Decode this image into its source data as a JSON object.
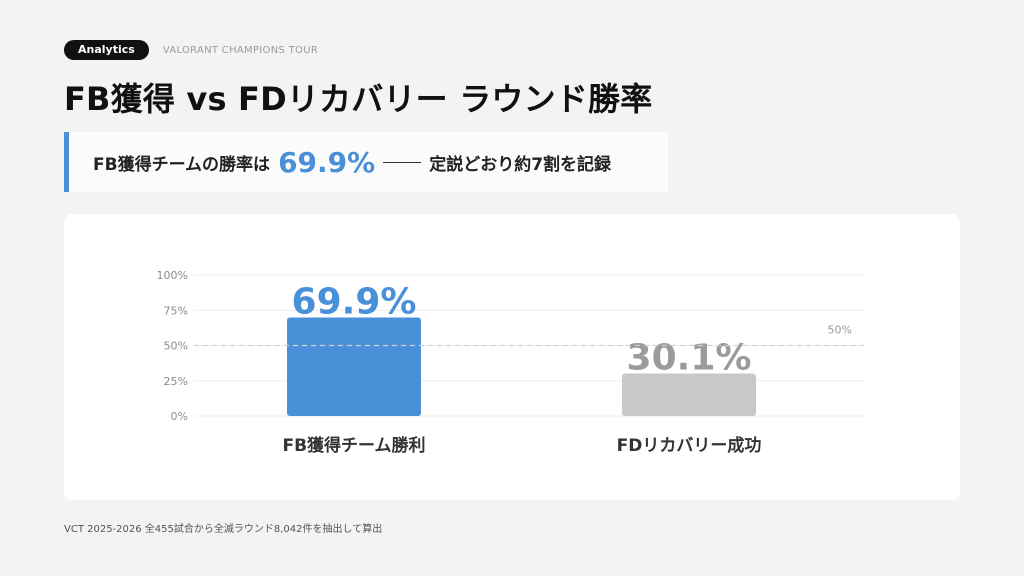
{
  "header": {
    "badge": "Analytics",
    "subtitle": "VALORANT CHAMPIONS TOUR",
    "title": "FB獲得 vs FDリカバリー ラウンド勝率"
  },
  "callout": {
    "prefix": "FB獲得チームの勝率は",
    "highlight": "69.9%",
    "suffix": "定説どおり約7割を記録",
    "accent_color": "#4a90d9"
  },
  "chart_data": {
    "type": "bar",
    "categories": [
      "FB獲得チーム勝利",
      "FDリカバリー成功"
    ],
    "values": [
      69.9,
      30.1
    ],
    "value_labels": [
      "69.9%",
      "30.1%"
    ],
    "colors": [
      "#4a90d9",
      "#c8c8c8"
    ],
    "label_colors": [
      "#4a90d9",
      "#9b9b9b"
    ],
    "ylim": [
      0,
      100
    ],
    "yticks": [
      0,
      25,
      50,
      75,
      100
    ],
    "ytick_labels": [
      "0%",
      "25%",
      "50%",
      "75%",
      "100%"
    ],
    "reference_line": {
      "value": 50,
      "label": "50%"
    },
    "grid": true
  },
  "footer": {
    "note": "VCT 2025-2026 全455試合から全滅ラウンド8,042件を抽出して算出"
  }
}
